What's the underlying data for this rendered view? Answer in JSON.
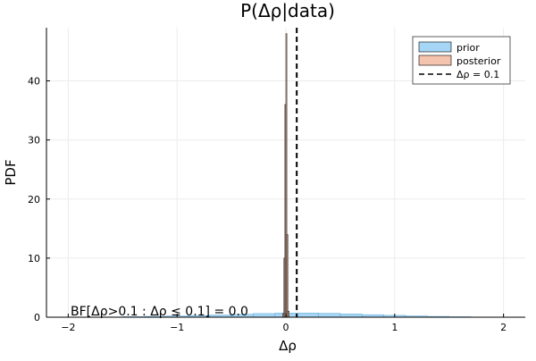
{
  "chart_data": {
    "type": "area",
    "title": "P(Δρ|data)",
    "xlabel": "Δρ",
    "ylabel": "PDF",
    "xlim": [
      -2.2,
      2.2
    ],
    "ylim": [
      0,
      49
    ],
    "x_ticks": [
      -2,
      -1,
      0,
      1,
      2
    ],
    "x_tick_labels": [
      "−2",
      "−1",
      "0",
      "1",
      "2"
    ],
    "y_ticks": [
      0,
      10,
      20,
      30,
      40
    ],
    "y_tick_labels": [
      "0",
      "10",
      "20",
      "30",
      "40"
    ],
    "grid": true,
    "legend_position": "top-right",
    "annotation": "BF[Δρ>0.1 : Δρ ≤ 0.1] = 0.0",
    "series": [
      {
        "name": "prior",
        "kind": "histogram",
        "color": "#a6d6f5",
        "edge_color": "#5fa8d8",
        "bin_edges": [
          -1.9,
          -1.7,
          -1.5,
          -1.3,
          -1.1,
          -0.9,
          -0.7,
          -0.5,
          -0.3,
          -0.1,
          0.1,
          0.3,
          0.5,
          0.7,
          0.9,
          1.1,
          1.3,
          1.5,
          1.7,
          1.9
        ],
        "values": [
          0.02,
          0.05,
          0.09,
          0.14,
          0.2,
          0.28,
          0.38,
          0.5,
          0.62,
          0.7,
          0.72,
          0.66,
          0.55,
          0.43,
          0.32,
          0.22,
          0.14,
          0.08,
          0.04
        ]
      },
      {
        "name": "posterior",
        "kind": "histogram",
        "color": "#f4c4ae",
        "edge_color": "#000000",
        "bin_edges": [
          -0.03,
          -0.018,
          -0.009,
          0,
          0.009,
          0.018,
          0.03
        ],
        "values": [
          0.6,
          10,
          36,
          48,
          14,
          1
        ]
      },
      {
        "name": "Δρ = 0.1",
        "kind": "vline",
        "color": "#000000",
        "style": "dashed",
        "x": 0.1
      }
    ]
  }
}
